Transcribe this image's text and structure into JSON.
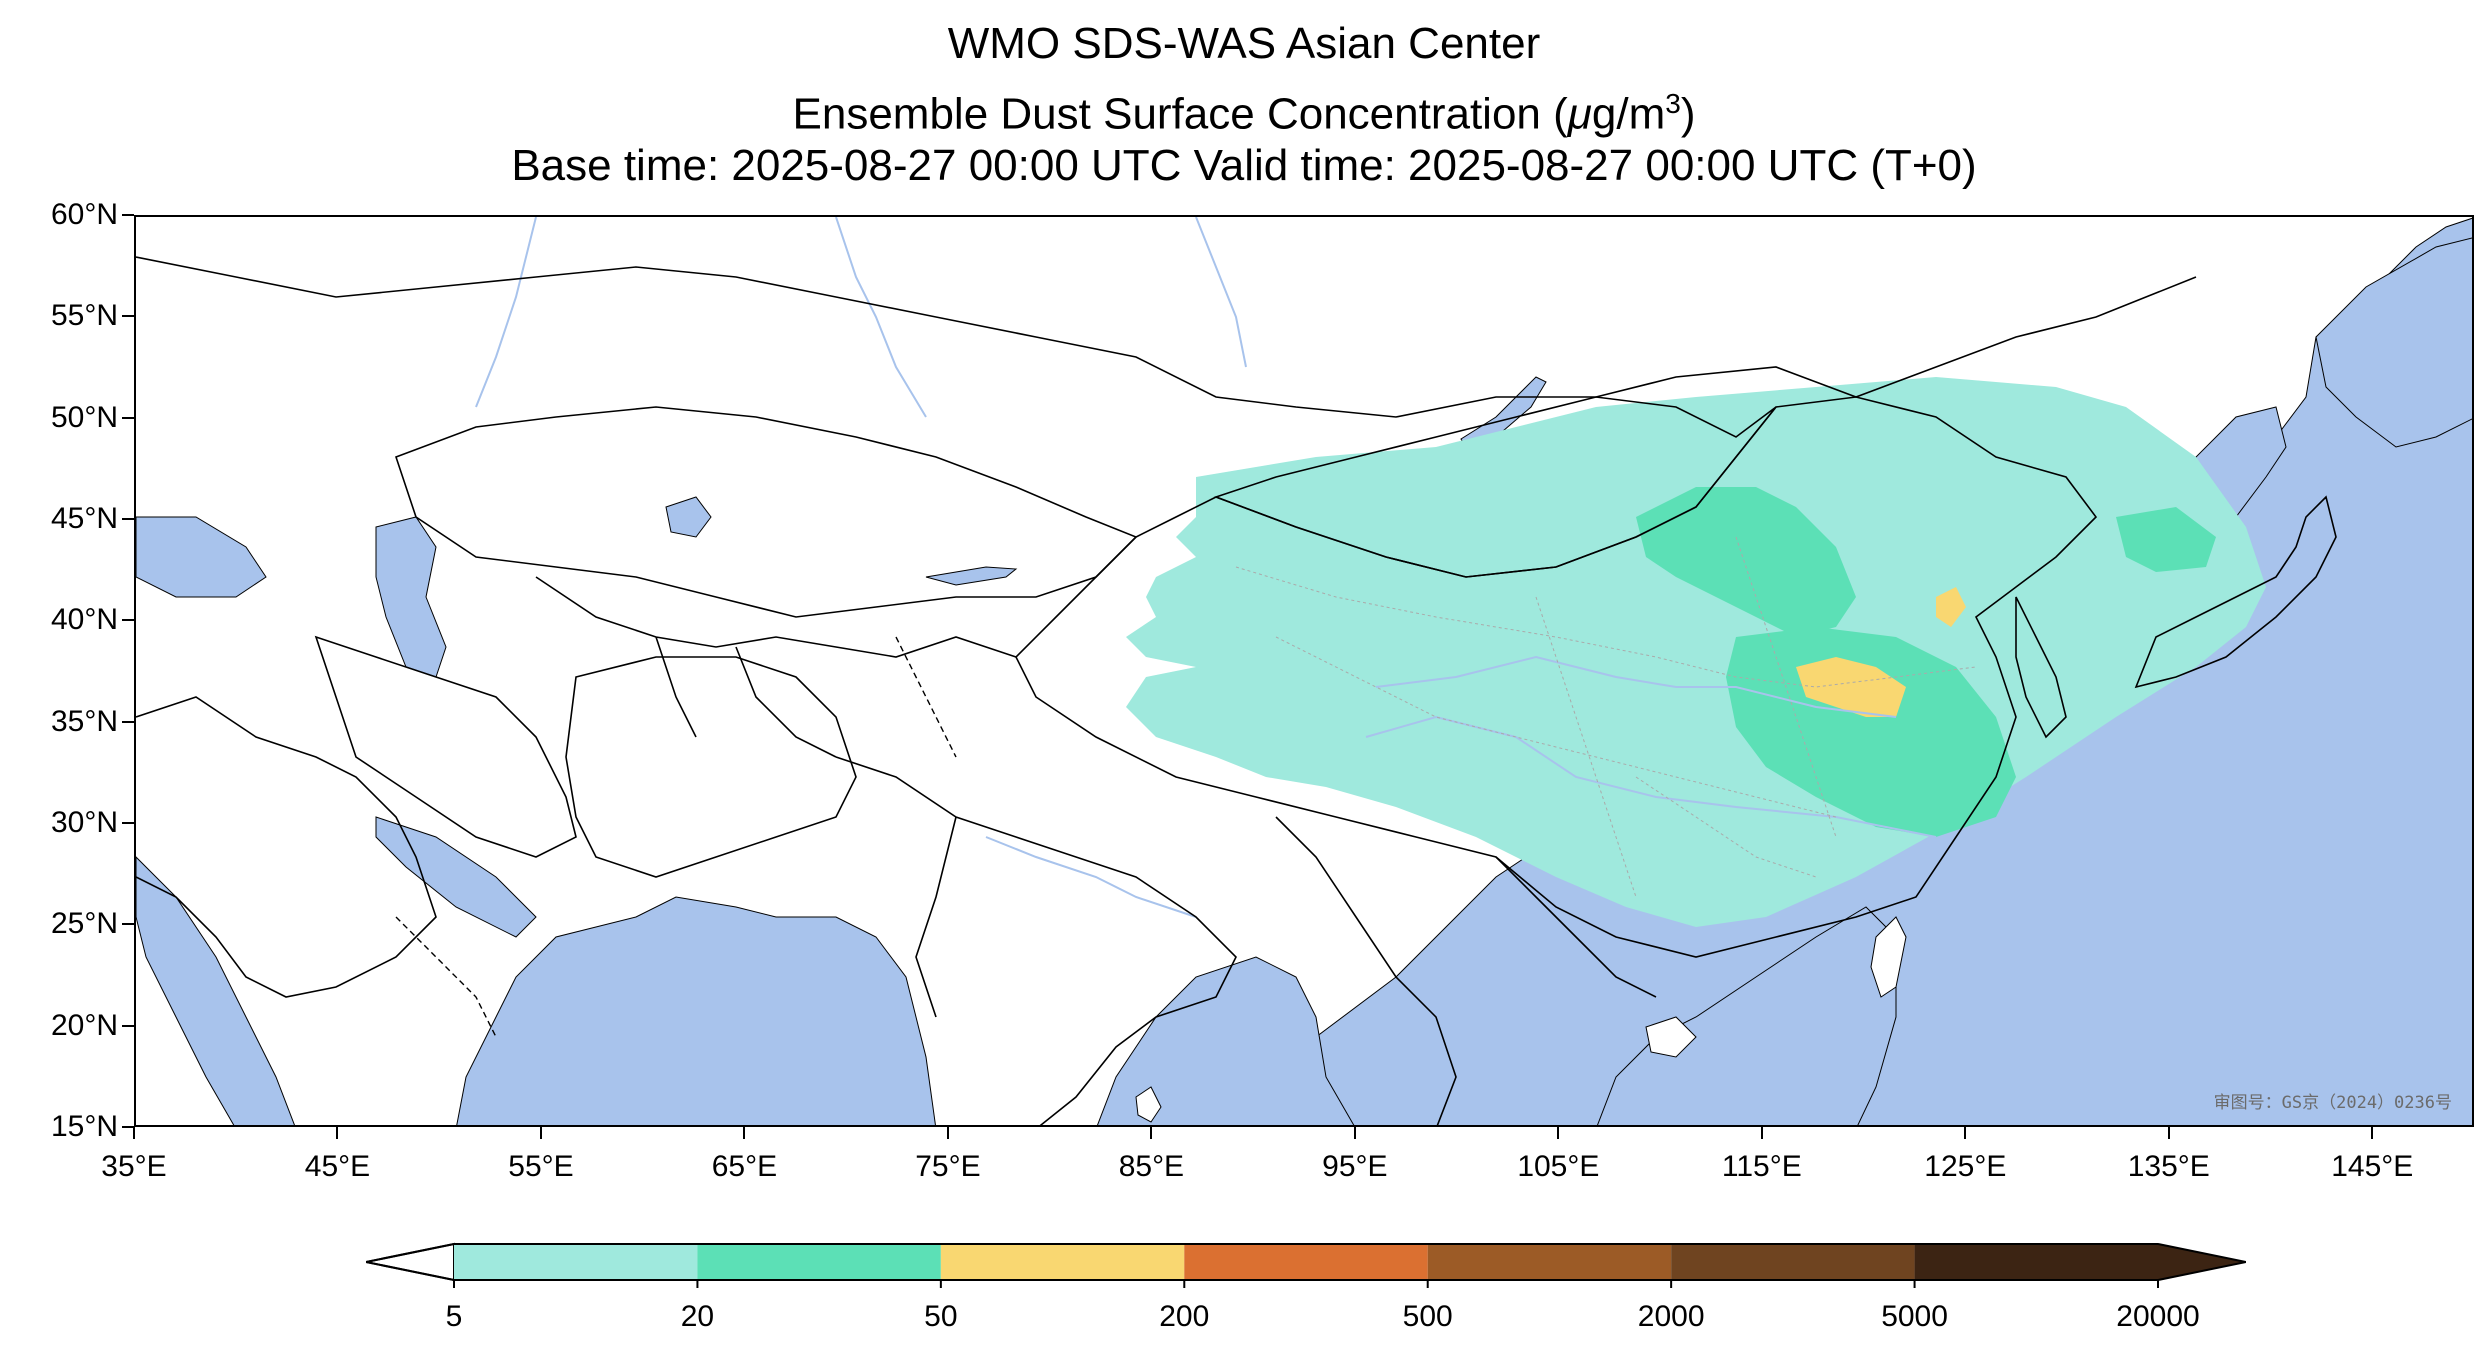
{
  "header": {
    "title": "WMO SDS-WAS Asian Center",
    "subtitle_prefix": "Ensemble Dust Surface Concentration (",
    "subtitle_unit_mu": "μ",
    "subtitle_unit": "g/m",
    "subtitle_unit_exp": "3",
    "subtitle_suffix": ")",
    "time_line": "Base time: 2025-08-27 00:00 UTC Valid time: 2025-08-27 00:00 UTC (T+0)"
  },
  "map": {
    "lat_labels": [
      "60°N",
      "55°N",
      "50°N",
      "45°N",
      "40°N",
      "35°N",
      "30°N",
      "25°N",
      "20°N",
      "15°N"
    ],
    "lon_labels": [
      "35°E",
      "45°E",
      "55°E",
      "65°E",
      "75°E",
      "85°E",
      "95°E",
      "105°E",
      "115°E",
      "125°E",
      "135°E",
      "145°E"
    ],
    "lat_range": [
      15,
      60
    ],
    "lon_range": [
      35,
      150
    ],
    "approval_number": "审图号：GS京（2024）0236号",
    "colors": {
      "water": "#a8c3ec",
      "land": "#ffffff",
      "border": "#000000",
      "river": "#a8c3ec"
    }
  },
  "colorbar": {
    "ticks": [
      "5",
      "20",
      "50",
      "200",
      "500",
      "2000",
      "5000",
      "20000"
    ],
    "colors": [
      "#9fe9dd",
      "#5ce0b6",
      "#f9d771",
      "#db7031",
      "#9c5b26",
      "#6f4420",
      "#3c2413"
    ],
    "extend": "both"
  }
}
